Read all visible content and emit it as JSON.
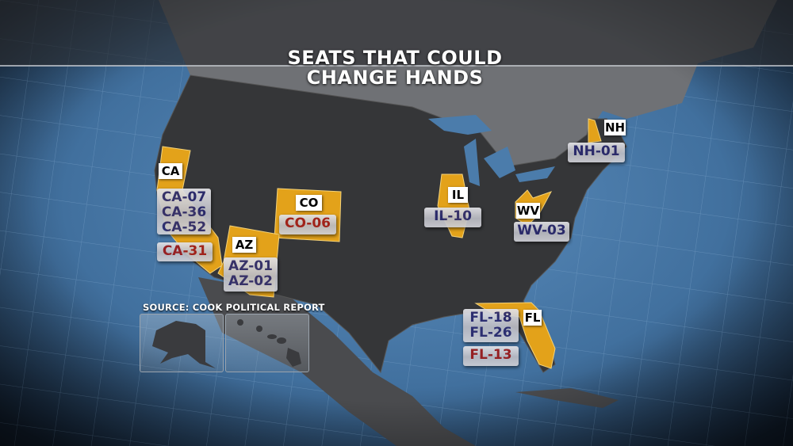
{
  "title": {
    "line1": "SEATS THAT COULD",
    "line2": "CHANGE HANDS"
  },
  "source": "SOURCE: COOK POLITICAL REPORT",
  "colors": {
    "highlight_state": "#e3a21a",
    "democrat_seat_text": "#2a2a6e",
    "republican_seat_text": "#9c1a1a",
    "ocean": "#4b7cab",
    "land": "#3a3a3a"
  },
  "states": [
    {
      "abbr": "CA",
      "seats_blue": [
        "CA-07",
        "CA-36",
        "CA-52"
      ],
      "seats_red": [
        "CA-31"
      ]
    },
    {
      "abbr": "CO",
      "seats_blue": [],
      "seats_red": [
        "CO-06"
      ]
    },
    {
      "abbr": "AZ",
      "seats_blue": [
        "AZ-01",
        "AZ-02"
      ],
      "seats_red": []
    },
    {
      "abbr": "IL",
      "seats_blue": [
        "IL-10"
      ],
      "seats_red": []
    },
    {
      "abbr": "WV",
      "seats_blue": [
        "WV-03"
      ],
      "seats_red": []
    },
    {
      "abbr": "NH",
      "seats_blue": [
        "NH-01"
      ],
      "seats_red": []
    },
    {
      "abbr": "FL",
      "seats_blue": [
        "FL-18",
        "FL-26"
      ],
      "seats_red": [
        "FL-13"
      ]
    }
  ],
  "insets": [
    "alaska",
    "hawaii"
  ]
}
